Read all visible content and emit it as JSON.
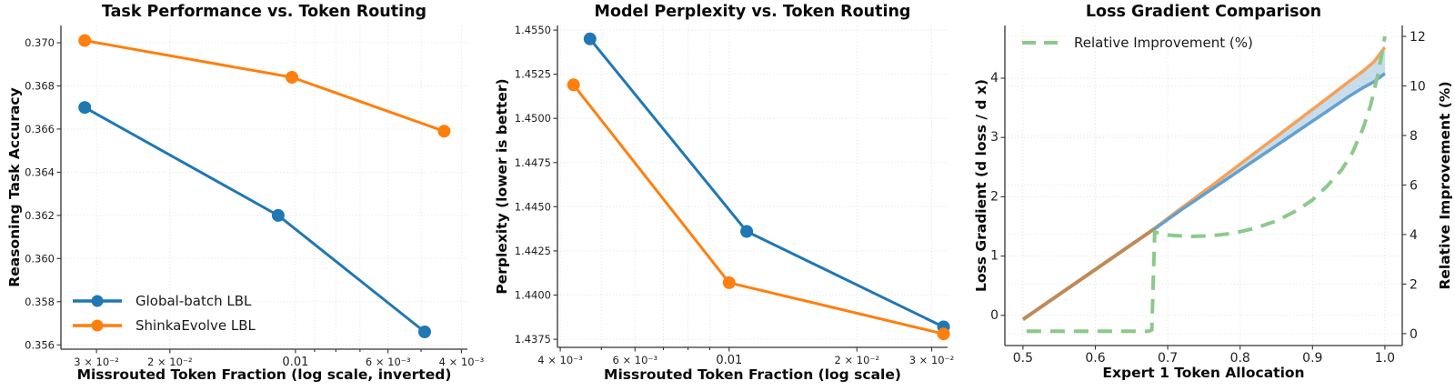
{
  "figure": {
    "background": "#ffffff"
  },
  "colors": {
    "blue": "#1f77b4",
    "orange": "#ff7f0e",
    "green_dashed": "#8bc98b",
    "overlap_tan": "#bf8a5a",
    "light_orange": "#f7a057",
    "light_blue": "#63a0cf",
    "fill_band": "#1f77b4",
    "grid": "#e0e0e0",
    "spine": "#333333"
  },
  "chart_data": [
    {
      "type": "line",
      "title": "Task Performance vs. Token Routing",
      "xlabel": "Missrouted Token Fraction (log scale, inverted)",
      "ylabel": "Reasoning Task Accuracy",
      "x_scale": "log",
      "x_inverted": true,
      "xlim": [
        0.0365,
        0.00387
      ],
      "ylim": [
        0.3558,
        0.3708
      ],
      "grid": true,
      "x_ticks": [
        {
          "v": 0.03,
          "label": "3 × 10⁻²"
        },
        {
          "v": 0.02,
          "label": "2 × 10⁻²"
        },
        {
          "v": 0.01,
          "label": "0.01"
        },
        {
          "v": 0.006,
          "label": "6 × 10⁻³"
        },
        {
          "v": 0.004,
          "label": "4 × 10⁻³"
        }
      ],
      "x_minor_grid": [
        0.03,
        0.02,
        0.01,
        0.009,
        0.008,
        0.007,
        0.006,
        0.005,
        0.004
      ],
      "y_ticks": [
        {
          "v": 0.356,
          "label": "0.356"
        },
        {
          "v": 0.358,
          "label": "0.358"
        },
        {
          "v": 0.36,
          "label": "0.360"
        },
        {
          "v": 0.362,
          "label": "0.362"
        },
        {
          "v": 0.364,
          "label": "0.364"
        },
        {
          "v": 0.366,
          "label": "0.366"
        },
        {
          "v": 0.368,
          "label": "0.368"
        },
        {
          "v": 0.37,
          "label": "0.370"
        }
      ],
      "series": [
        {
          "name": "Global-batch LBL",
          "color": "#1f77b4",
          "line_width": 3,
          "marker": true,
          "x": [
            0.032,
            0.011,
            0.0049
          ],
          "y": [
            0.367,
            0.362,
            0.3566
          ]
        },
        {
          "name": "ShinkaEvolve LBL",
          "color": "#ff7f0e",
          "line_width": 3,
          "marker": true,
          "x": [
            0.032,
            0.0102,
            0.0044
          ],
          "y": [
            0.3701,
            0.3684,
            0.3659
          ]
        }
      ],
      "legend": {
        "position": "lower-left",
        "items": [
          {
            "label": "Global-batch LBL",
            "color": "#1f77b4",
            "dash": false,
            "marker": true
          },
          {
            "label": "ShinkaEvolve LBL",
            "color": "#ff7f0e",
            "dash": false,
            "marker": true
          }
        ]
      }
    },
    {
      "type": "line",
      "title": "Model Perplexity vs. Token Routing",
      "xlabel": "Missrouted Token Fraction (log scale)",
      "ylabel": "Perplexity (lower is better)",
      "x_scale": "log",
      "x_inverted": false,
      "xlim": [
        0.00394,
        0.0327
      ],
      "ylim": [
        1.43704,
        1.45526
      ],
      "grid": true,
      "x_ticks": [
        {
          "v": 0.004,
          "label": "4 × 10⁻³"
        },
        {
          "v": 0.006,
          "label": "6 × 10⁻³"
        },
        {
          "v": 0.01,
          "label": "0.01"
        },
        {
          "v": 0.02,
          "label": "2 × 10⁻²"
        },
        {
          "v": 0.03,
          "label": "3 × 10⁻²"
        }
      ],
      "x_minor_grid": [
        0.004,
        0.005,
        0.006,
        0.007,
        0.008,
        0.009,
        0.01,
        0.02,
        0.03
      ],
      "y_ticks": [
        {
          "v": 1.4375,
          "label": "1.4375"
        },
        {
          "v": 1.44,
          "label": "1.4400"
        },
        {
          "v": 1.4425,
          "label": "1.4425"
        },
        {
          "v": 1.445,
          "label": "1.4450"
        },
        {
          "v": 1.4475,
          "label": "1.4475"
        },
        {
          "v": 1.45,
          "label": "1.4500"
        },
        {
          "v": 1.4525,
          "label": "1.4525"
        },
        {
          "v": 1.455,
          "label": "1.4550"
        }
      ],
      "series": [
        {
          "name": "Global-batch LBL",
          "color": "#1f77b4",
          "line_width": 3,
          "marker": true,
          "x": [
            0.0047,
            0.011,
            0.032
          ],
          "y": [
            1.4545,
            1.4436,
            1.4382
          ]
        },
        {
          "name": "ShinkaEvolve LBL",
          "color": "#ff7f0e",
          "line_width": 3,
          "marker": true,
          "x": [
            0.0043,
            0.01,
            0.032
          ],
          "y": [
            1.4519,
            1.4407,
            1.4378
          ]
        }
      ],
      "legend": null
    },
    {
      "type": "line",
      "title": "Loss Gradient Comparison",
      "xlabel": "Expert 1 Token Allocation",
      "ylabel": "Loss Gradient (d loss / d x)",
      "ylabel_right": "Relative Improvement (%)",
      "x_scale": "linear",
      "x_inverted": false,
      "xlim": [
        0.475,
        1.024
      ],
      "ylim": [
        -0.51,
        4.89
      ],
      "ylim_right": [
        -0.48,
        12.44
      ],
      "grid": true,
      "x_ticks": [
        {
          "v": 0.5,
          "label": "0.5"
        },
        {
          "v": 0.6,
          "label": "0.6"
        },
        {
          "v": 0.7,
          "label": "0.7"
        },
        {
          "v": 0.8,
          "label": "0.8"
        },
        {
          "v": 0.9,
          "label": "0.9"
        },
        {
          "v": 1.0,
          "label": "1.0"
        }
      ],
      "y_ticks": [
        {
          "v": 0,
          "label": "0"
        },
        {
          "v": 1,
          "label": "1"
        },
        {
          "v": 2,
          "label": "2"
        },
        {
          "v": 3,
          "label": "3"
        },
        {
          "v": 4,
          "label": "4"
        }
      ],
      "y2_ticks": [
        {
          "v": 0,
          "label": "0"
        },
        {
          "v": 2,
          "label": "2"
        },
        {
          "v": 4,
          "label": "4"
        },
        {
          "v": 6,
          "label": "6"
        },
        {
          "v": 8,
          "label": "8"
        },
        {
          "v": 10,
          "label": "10"
        },
        {
          "v": 12,
          "label": "12"
        }
      ],
      "fill_between": {
        "x": [
          0.681,
          0.72,
          0.76,
          0.8,
          0.84,
          0.88,
          0.92,
          0.95,
          0.97,
          0.985,
          1.0
        ],
        "y_upper": [
          1.46,
          1.82,
          2.18,
          2.55,
          2.92,
          3.29,
          3.66,
          3.94,
          4.12,
          4.28,
          4.52
        ],
        "y_lower": [
          1.45,
          1.79,
          2.12,
          2.45,
          2.78,
          3.11,
          3.44,
          3.69,
          3.84,
          3.94,
          4.08
        ],
        "color": "#1f77b4",
        "opacity": 0.25
      },
      "series": [
        {
          "name": "shared_gradient",
          "color": "#bf8a5a",
          "line_width": 4,
          "marker": false,
          "x": [
            0.5,
            0.681
          ],
          "y": [
            -0.07,
            1.455
          ]
        },
        {
          "name": "gradient_upper",
          "color": "#f7a057",
          "line_width": 3.5,
          "marker": false,
          "x": [
            0.681,
            0.72,
            0.76,
            0.8,
            0.84,
            0.88,
            0.92,
            0.95,
            0.97,
            0.985,
            1.0
          ],
          "y": [
            1.46,
            1.82,
            2.18,
            2.55,
            2.92,
            3.29,
            3.66,
            3.94,
            4.12,
            4.28,
            4.52
          ]
        },
        {
          "name": "gradient_lower",
          "color": "#63a0cf",
          "line_width": 3.5,
          "marker": false,
          "x": [
            0.681,
            0.72,
            0.76,
            0.8,
            0.84,
            0.88,
            0.92,
            0.95,
            0.97,
            0.985,
            1.0
          ],
          "y": [
            1.45,
            1.79,
            2.12,
            2.45,
            2.78,
            3.11,
            3.44,
            3.69,
            3.84,
            3.94,
            4.08
          ]
        },
        {
          "name": "relative_improvement",
          "color": "#8bc98b",
          "line_width": 4,
          "marker": false,
          "dash": "16 10",
          "axis": "y2",
          "x": [
            0.505,
            0.6,
            0.674,
            0.678,
            0.682,
            0.7,
            0.73,
            0.76,
            0.79,
            0.82,
            0.85,
            0.88,
            0.9,
            0.92,
            0.94,
            0.955,
            0.97,
            0.98,
            0.99,
            0.997,
            1.0
          ],
          "y": [
            0.1,
            0.1,
            0.1,
            0.15,
            4.1,
            3.98,
            3.92,
            3.95,
            4.05,
            4.25,
            4.55,
            5.0,
            5.4,
            5.95,
            6.6,
            7.3,
            8.3,
            9.2,
            10.4,
            11.5,
            12.0
          ]
        }
      ],
      "legend": {
        "position": "upper-left",
        "items": [
          {
            "label": "Relative Improvement (%)",
            "color": "#8bc98b",
            "dash": true,
            "marker": false
          }
        ]
      }
    }
  ]
}
